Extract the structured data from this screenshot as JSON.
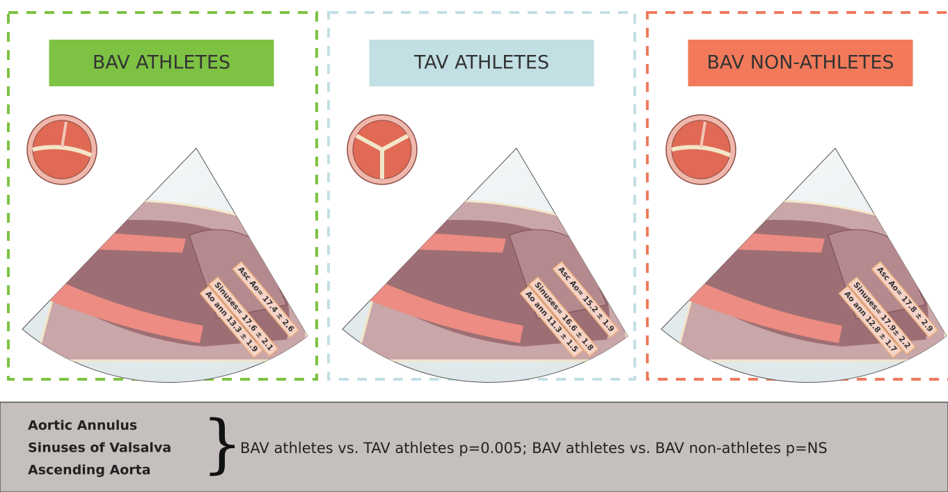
{
  "panels": [
    {
      "title": "BAV ATHLETES",
      "labels": [
        "Asc Ao= 17.4 ± 2.6",
        "Sinuses= 17.6 ± 2.1",
        "Ao ann 13.3 ± 1.9"
      ]
    },
    {
      "title": "TAV ATHLETES",
      "labels": [
        "Asc Ao= 15.2 ± 1.9",
        "Sinuses= 16.6 ± 1.8",
        "Ao ann 11.3 ± 1.5"
      ]
    },
    {
      "title": "BAV NON-ATHLETES",
      "labels": [
        "Asc Ao= 17.8 ± 2.9",
        "Sinuses= 17.9± 2.2",
        "Ao ann 12.8 ± 1.7"
      ]
    }
  ],
  "footer": {
    "measures": [
      "Aortic Annulus",
      "Sinuses of Valsalva",
      "Ascending Aorta"
    ],
    "text": "BAV athletes vs. TAV athletes p=0.005; BAV athletes vs. BAV non-athletes p=NS"
  }
}
